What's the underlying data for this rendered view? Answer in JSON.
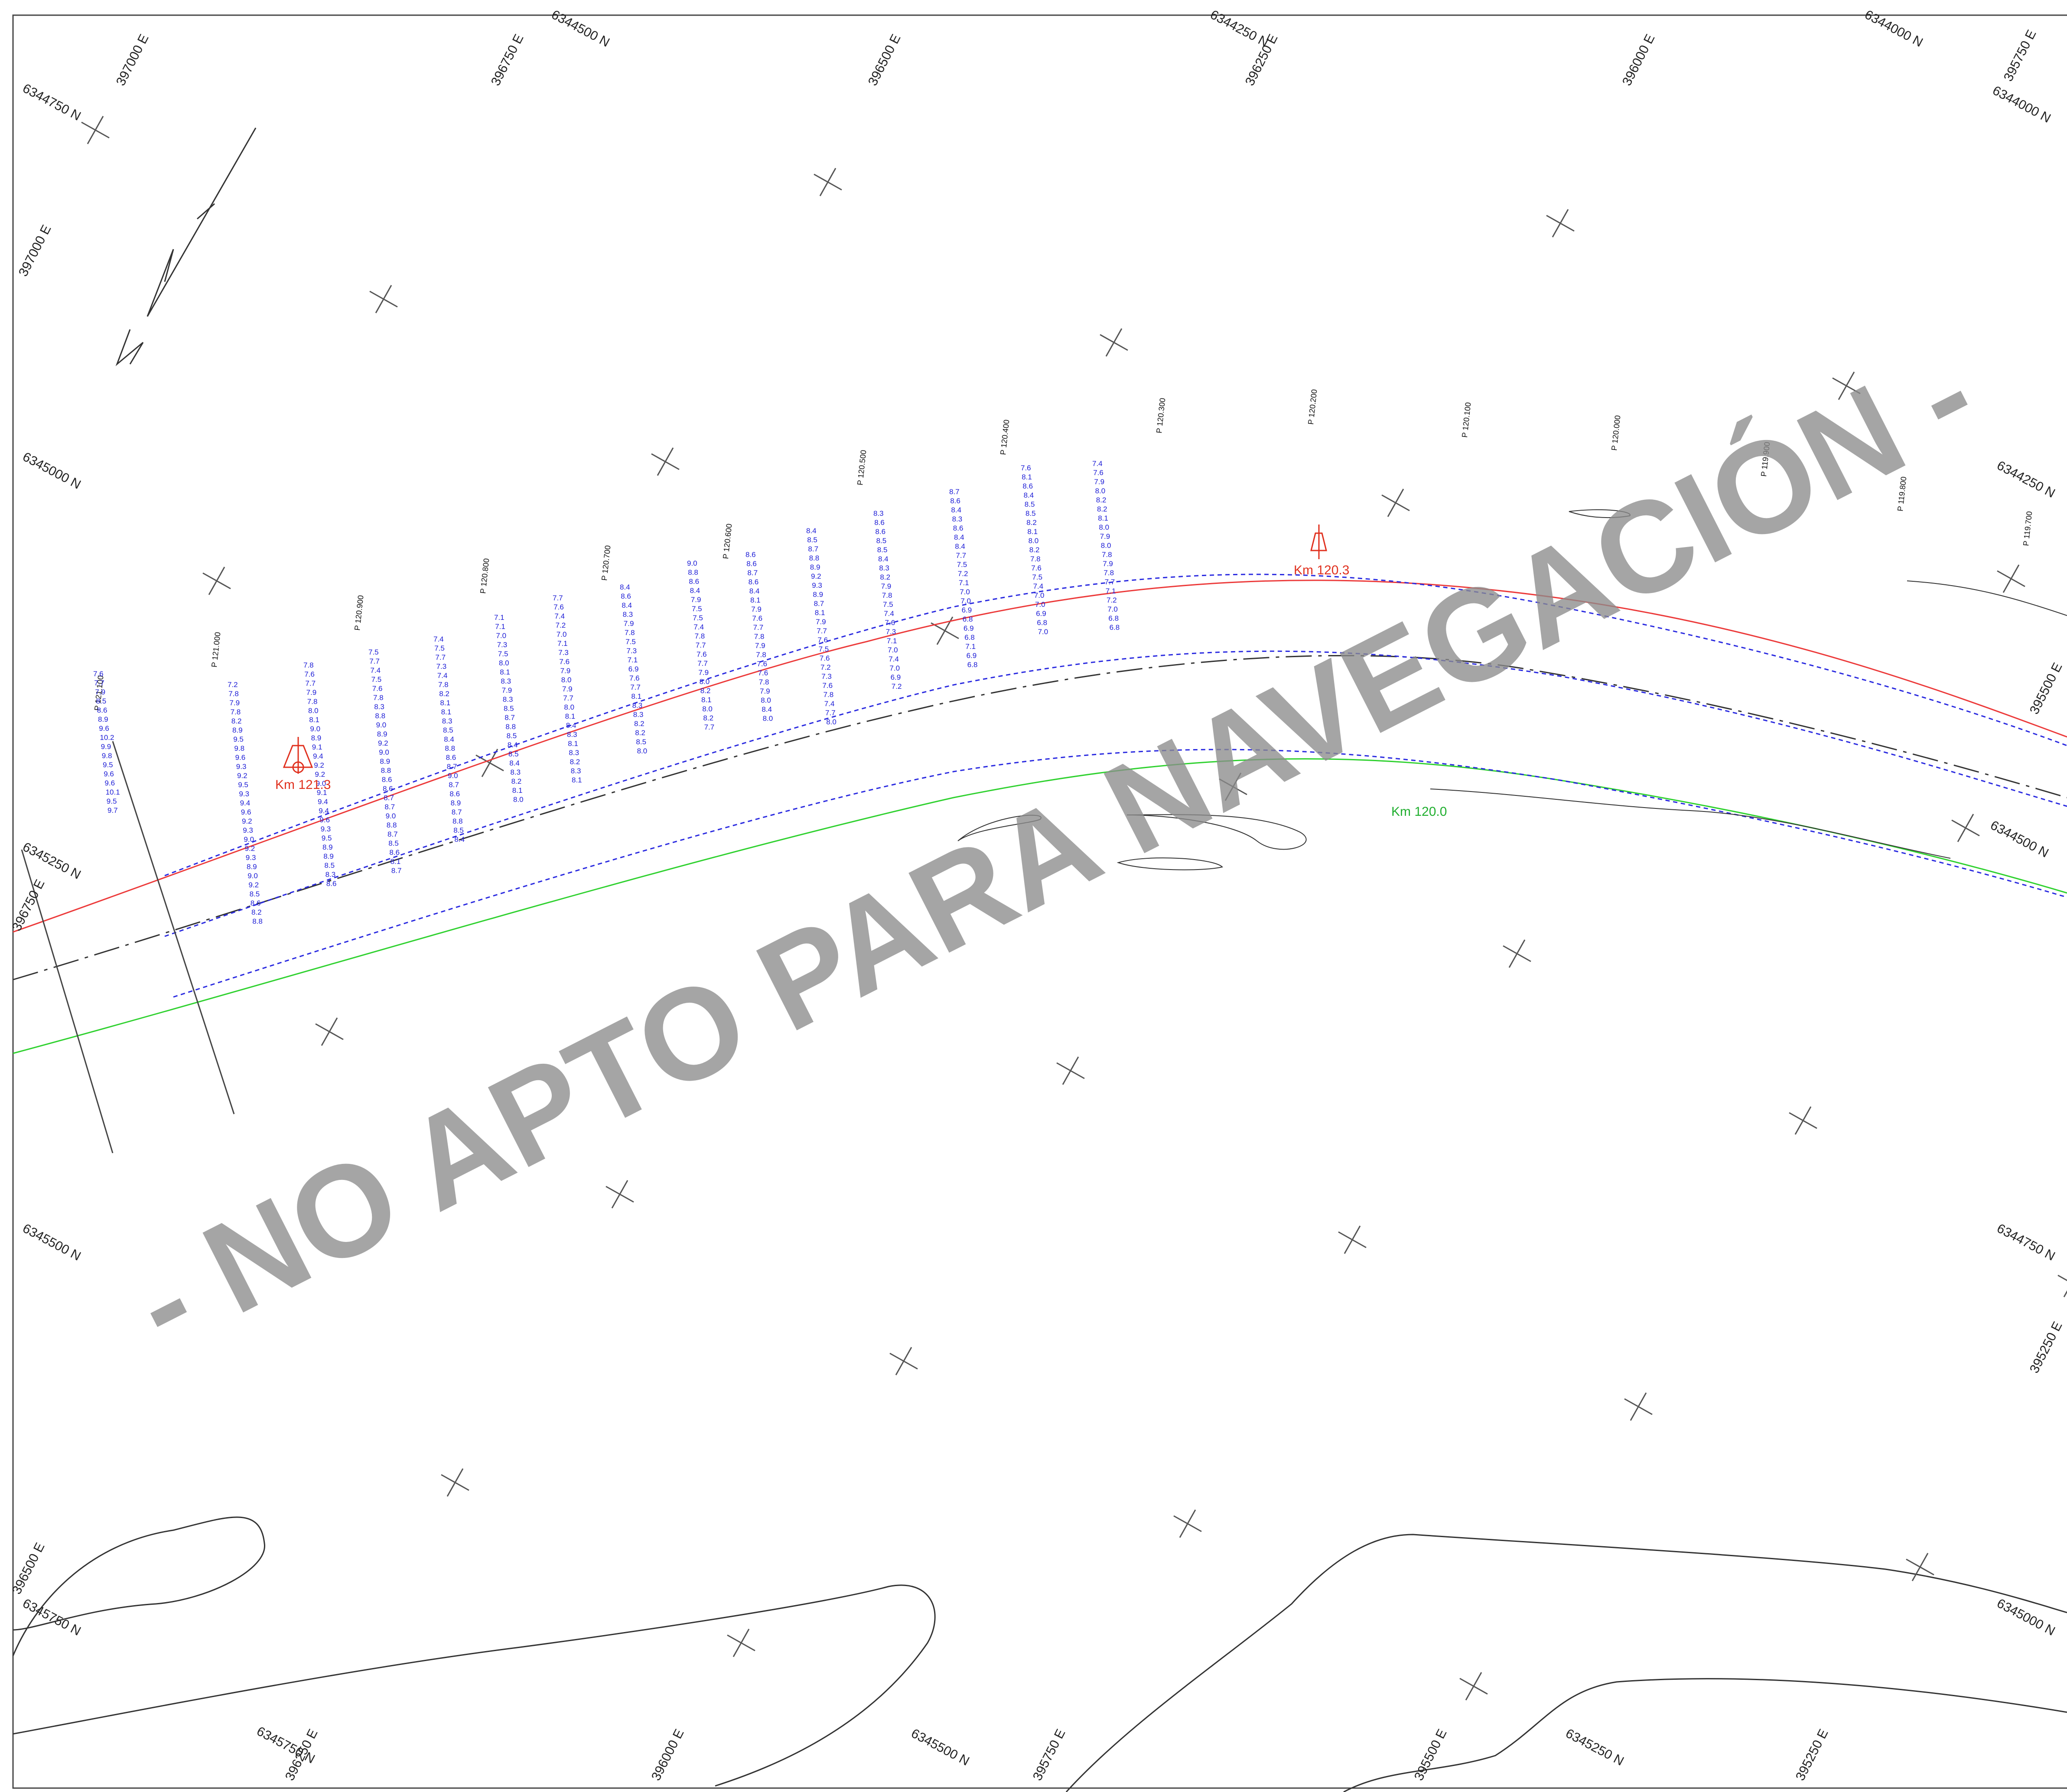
{
  "map": {
    "watermark": "- NO APTO PARA NAVEGACIÓN -",
    "colors": {
      "sounding": "#1c1cd6",
      "shallow_sounding": "#d81b1b",
      "km_marker": "#e0301e",
      "km_marker_green": "#1fae2e",
      "red_line": "#ec3a3a",
      "green_line": "#2fd12f",
      "frame": "#444444",
      "contour": "#333333",
      "watermark": "#8c8c8c"
    },
    "km_markers": [
      {
        "label": "Km 121.3",
        "color": "red"
      },
      {
        "label": "Km 120.3",
        "color": "red"
      },
      {
        "label": "Km 120.0",
        "color": "green"
      }
    ],
    "profiles": [
      {
        "label": "P 121.100",
        "values": [
          "7.6",
          "7.7",
          "7.9",
          "8.5",
          "8.6",
          "8.9",
          "9.6",
          "10.2",
          "9.9",
          "9.8",
          "9.5",
          "9.6",
          "9.6",
          "10.1",
          "9.5",
          "9.7"
        ]
      },
      {
        "label": "P 121.000",
        "values": [
          "7.2",
          "7.8",
          "7.9",
          "7.8",
          "8.2",
          "8.9",
          "9.5",
          "9.8",
          "9.6",
          "9.3",
          "9.2",
          "9.5",
          "9.3",
          "9.4",
          "9.6",
          "9.2",
          "9.3",
          "9.0",
          "9.2",
          "9.3",
          "8.9",
          "9.0",
          "9.2",
          "8.5",
          "8.6",
          "8.2",
          "8.8"
        ]
      },
      {
        "label": "P 120.900",
        "values": [
          "7.8",
          "7.6",
          "7.7",
          "7.9",
          "7.8",
          "8.0",
          "8.1",
          "9.0",
          "8.9",
          "9.1",
          "9.4",
          "9.2",
          "9.2",
          "9.0",
          "9.1",
          "9.4",
          "9.4",
          "9.6",
          "9.3",
          "9.5",
          "8.9",
          "8.9",
          "8.5",
          "8.3",
          "8.6"
        ]
      },
      {
        "label": "P 120.800",
        "values": [
          "7.5",
          "7.7",
          "7.4",
          "7.5",
          "7.6",
          "7.8",
          "8.3",
          "8.8",
          "9.0",
          "8.9",
          "9.2",
          "9.0",
          "8.9",
          "8.8",
          "8.6",
          "8.6",
          "8.7",
          "8.7",
          "9.0",
          "8.8",
          "8.7",
          "8.5",
          "8.6",
          "8.1",
          "8.7"
        ]
      },
      {
        "label": "P 120.700",
        "values": [
          "7.4",
          "7.5",
          "7.7",
          "7.3",
          "7.4",
          "7.8",
          "8.2",
          "8.1",
          "8.1",
          "8.3",
          "8.5",
          "8.4",
          "8.8",
          "8.6",
          "8.7",
          "9.0",
          "8.7",
          "8.6",
          "8.9",
          "8.7",
          "8.8",
          "8.5",
          "8.4"
        ]
      },
      {
        "label": "P 120.600",
        "values": [
          "7.1",
          "7.1",
          "7.0",
          "7.3",
          "7.5",
          "8.0",
          "8.1",
          "8.3",
          "7.9",
          "8.3",
          "8.5",
          "8.7",
          "8.8",
          "8.5",
          "8.4",
          "8.5",
          "8.4",
          "8.3",
          "8.2",
          "8.1",
          "8.0"
        ]
      },
      {
        "label": "P 120.500",
        "values": [
          "7.7",
          "7.6",
          "7.4",
          "7.2",
          "7.0",
          "7.1",
          "7.3",
          "7.6",
          "7.9",
          "8.0",
          "7.9",
          "7.7",
          "8.0",
          "8.1",
          "8.4",
          "8.3",
          "8.1",
          "8.3",
          "8.2",
          "8.3",
          "8.1"
        ]
      },
      {
        "label": "P 120.400",
        "values": [
          "8.4",
          "8.6",
          "8.4",
          "8.3",
          "7.9",
          "7.8",
          "7.5",
          "7.3",
          "7.1",
          "6.9",
          "7.6",
          "7.7",
          "8.1",
          "8.3",
          "8.3",
          "8.2",
          "8.2",
          "8.5",
          "8.0"
        ]
      },
      {
        "label": "P 120.300",
        "values": [
          "9.0",
          "8.8",
          "8.6",
          "8.4",
          "7.9",
          "7.5",
          "7.5",
          "7.4",
          "7.8",
          "7.7",
          "7.6",
          "7.7",
          "7.9",
          "8.0",
          "8.2",
          "8.1",
          "8.0",
          "8.2",
          "7.7"
        ]
      },
      {
        "label": "P 120.200",
        "values": [
          "8.6",
          "8.6",
          "8.7",
          "8.6",
          "8.4",
          "8.1",
          "7.9",
          "7.6",
          "7.7",
          "7.8",
          "7.9",
          "7.8",
          "7.6",
          "7.6",
          "7.8",
          "7.9",
          "8.0",
          "8.4",
          "8.0"
        ]
      },
      {
        "label": "P 120.100",
        "values": [
          "8.4",
          "8.5",
          "8.7",
          "8.8",
          "8.9",
          "9.2",
          "9.3",
          "8.9",
          "8.7",
          "8.1",
          "7.9",
          "7.7",
          "7.6",
          "7.5",
          "7.6",
          "7.2",
          "7.3",
          "7.6",
          "7.8",
          "7.4",
          "7.7",
          "8.0"
        ]
      },
      {
        "label": "P 120.000",
        "values": [
          "8.3",
          "8.6",
          "8.6",
          "8.5",
          "8.5",
          "8.4",
          "8.3",
          "8.2",
          "7.9",
          "7.8",
          "7.5",
          "7.4",
          "7.6",
          "7.3",
          "7.1",
          "7.0",
          "7.4",
          "7.0",
          "6.9",
          "7.2"
        ]
      },
      {
        "label": "P 119.900",
        "values": [
          "8.7",
          "8.6",
          "8.4",
          "8.3",
          "8.6",
          "8.4",
          "8.4",
          "7.7",
          "7.5",
          "7.2",
          "7.1",
          "7.0",
          "7.0",
          "6.9",
          "6.8",
          "6.9",
          "6.8",
          "7.1",
          "6.9",
          "6.8"
        ]
      },
      {
        "label": "P 119.800",
        "values": [
          "7.6",
          "8.1",
          "8.6",
          "8.4",
          "8.5",
          "8.5",
          "8.2",
          "8.1",
          "8.0",
          "8.2",
          "7.8",
          "7.6",
          "7.5",
          "7.4",
          "7.0",
          "7.0",
          "6.9",
          "6.8",
          "7.0"
        ]
      },
      {
        "label": "P 119.700",
        "values": [
          "7.4",
          "7.6",
          "7.9",
          "8.0",
          "8.2",
          "8.2",
          "8.1",
          "8.0",
          "7.9",
          "8.0",
          "7.8",
          "7.9",
          "7.8",
          "7.7",
          "7.1",
          "7.2",
          "7.0",
          "6.8",
          "6.8"
        ]
      }
    ],
    "coord_labels": [
      "397000 E",
      "6344500 N",
      "396750 E",
      "396500 E",
      "6344250 N",
      "396250 E",
      "396000 E",
      "6344000 N",
      "395750 E",
      "6344750 N",
      "6344000 N",
      "397000 E",
      "6345000 N",
      "6344250 N",
      "395500 E",
      "6345250 N",
      "396750 E",
      "6344500 N",
      "6345500 N",
      "6344750 N",
      "395250 E",
      "396500 E",
      "6345750 N",
      "6345000 N",
      "6345750 N",
      "396250 E",
      "396000 E",
      "6345500 N",
      "395750 E",
      "395500 E",
      "6345250 N",
      "395250 E"
    ]
  }
}
